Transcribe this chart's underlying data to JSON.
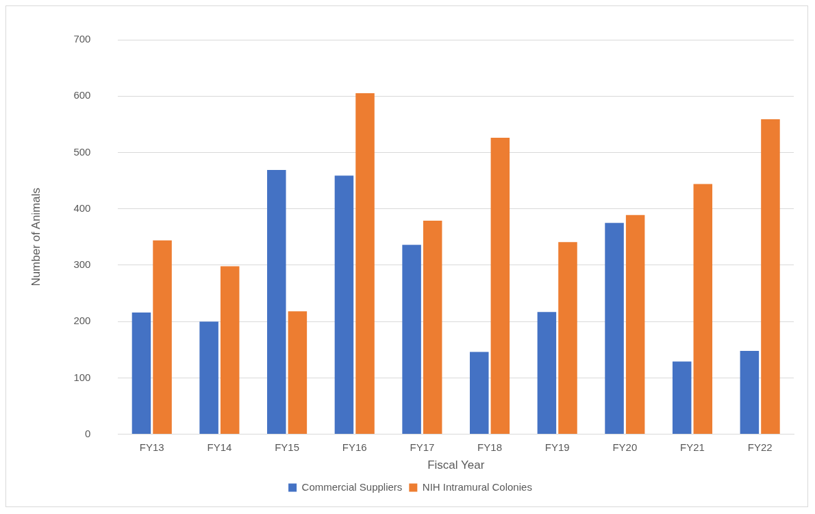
{
  "chart_data": {
    "type": "bar",
    "xlabel": "Fiscal Year",
    "ylabel": "Number of Animals",
    "categories": [
      "FY13",
      "FY14",
      "FY15",
      "FY16",
      "FY17",
      "FY18",
      "FY19",
      "FY20",
      "FY21",
      "FY22"
    ],
    "series": [
      {
        "name": "Commercial Suppliers",
        "color": "#4472c4",
        "values": [
          216,
          200,
          469,
          459,
          336,
          146,
          217,
          375,
          129,
          148
        ]
      },
      {
        "name": "NIH Intramural Colonies",
        "color": "#ed7d31",
        "values": [
          344,
          298,
          218,
          605,
          379,
          526,
          341,
          389,
          444,
          559
        ]
      }
    ],
    "ylim": [
      0,
      700
    ],
    "yticks": [
      0,
      100,
      200,
      300,
      400,
      500,
      600,
      700
    ],
    "grid": "y",
    "legend": "bottom"
  }
}
